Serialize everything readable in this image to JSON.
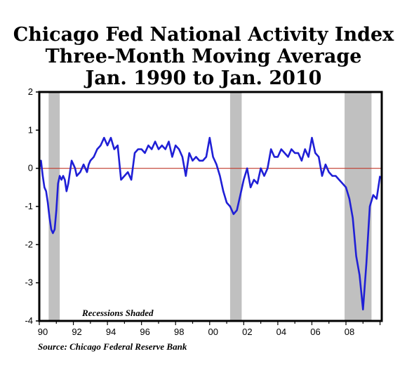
{
  "title_lines": [
    "Chicago Fed National Activity Index",
    "Three-Month Moving Average",
    "Jan. 1990 to Jan. 2010"
  ],
  "source": "Source: Chicago Federal Reserve Bank",
  "colors": {
    "series": "#1f1fd6",
    "zero_line": "#c0392b",
    "recession": "#c0c0c0",
    "frame": "#000000"
  },
  "chart_data": {
    "type": "line",
    "title": "Chicago Fed National Activity Index Three-Month Moving Average Jan. 1990 to Jan. 2010",
    "xlabel": "",
    "ylabel": "",
    "xlim": [
      1990.0,
      2010.1
    ],
    "ylim": [
      -4,
      2
    ],
    "y_ticks": [
      2,
      1,
      0,
      -1,
      -2,
      -3,
      -4
    ],
    "y_tick_labels": [
      "2",
      "1",
      "0",
      "-1",
      "-2",
      "-3",
      "-4"
    ],
    "x_tick_labels": [
      {
        "year": 1990,
        "label": "90"
      },
      {
        "year": 1992,
        "label": "92"
      },
      {
        "year": 1994,
        "label": "94"
      },
      {
        "year": 1996,
        "label": "96"
      },
      {
        "year": 1998,
        "label": "98"
      },
      {
        "year": 2000,
        "label": "00"
      },
      {
        "year": 2002,
        "label": "02"
      },
      {
        "year": 2004,
        "label": "04"
      },
      {
        "year": 2006,
        "label": "06"
      },
      {
        "year": 2008,
        "label": "08"
      }
    ],
    "reference_line": 0,
    "recessions": [
      [
        1990.55,
        1991.2
      ],
      [
        2001.2,
        2001.88
      ],
      [
        2007.92,
        2009.5
      ]
    ],
    "recessions_label": "Recessions Shaded",
    "grid": false,
    "series": [
      {
        "x": [
          1990.0,
          1990.1,
          1990.2,
          1990.3,
          1990.4,
          1990.5,
          1990.6,
          1990.7,
          1990.8,
          1990.9,
          1991.0,
          1991.1,
          1991.2,
          1991.3,
          1991.4,
          1991.5,
          1991.6,
          1991.7,
          1991.8,
          1991.9,
          1992.0,
          1992.1,
          1992.2,
          1992.3,
          1992.4,
          1992.5,
          1992.6,
          1992.7,
          1992.8,
          1992.9,
          1993.0,
          1993.2,
          1993.4,
          1993.6,
          1993.8,
          1994.0,
          1994.2,
          1994.4,
          1994.6,
          1994.8,
          1995.0,
          1995.2,
          1995.4,
          1995.6,
          1995.8,
          1996.0,
          1996.2,
          1996.4,
          1996.6,
          1996.8,
          1997.0,
          1997.2,
          1997.4,
          1997.6,
          1997.8,
          1998.0,
          1998.2,
          1998.4,
          1998.6,
          1998.8,
          1999.0,
          1999.2,
          1999.4,
          1999.6,
          1999.8,
          2000.0,
          2000.2,
          2000.4,
          2000.6,
          2000.8,
          2001.0,
          2001.2,
          2001.4,
          2001.6,
          2001.8,
          2002.0,
          2002.2,
          2002.4,
          2002.6,
          2002.8,
          2003.0,
          2003.2,
          2003.4,
          2003.6,
          2003.8,
          2004.0,
          2004.2,
          2004.4,
          2004.6,
          2004.8,
          2005.0,
          2005.2,
          2005.4,
          2005.6,
          2005.8,
          2006.0,
          2006.2,
          2006.4,
          2006.6,
          2006.8,
          2007.0,
          2007.2,
          2007.4,
          2007.6,
          2007.8,
          2008.0,
          2008.2,
          2008.4,
          2008.6,
          2008.8,
          2009.0,
          2009.2,
          2009.4,
          2009.6,
          2009.8,
          2010.0
        ],
        "y": [
          0.0,
          0.2,
          -0.2,
          -0.5,
          -0.6,
          -0.9,
          -1.3,
          -1.6,
          -1.7,
          -1.6,
          -1.1,
          -0.4,
          -0.2,
          -0.3,
          -0.2,
          -0.3,
          -0.6,
          -0.4,
          -0.1,
          0.2,
          0.1,
          0.0,
          -0.2,
          -0.15,
          -0.1,
          0.0,
          0.1,
          0.0,
          -0.1,
          0.1,
          0.2,
          0.3,
          0.5,
          0.6,
          0.8,
          0.6,
          0.8,
          0.5,
          0.6,
          -0.3,
          -0.2,
          -0.1,
          -0.3,
          0.4,
          0.5,
          0.5,
          0.4,
          0.6,
          0.5,
          0.7,
          0.5,
          0.6,
          0.5,
          0.7,
          0.3,
          0.6,
          0.5,
          0.3,
          -0.2,
          0.4,
          0.2,
          0.3,
          0.2,
          0.2,
          0.3,
          0.8,
          0.3,
          0.1,
          -0.2,
          -0.6,
          -0.9,
          -1.0,
          -1.2,
          -1.1,
          -0.7,
          -0.3,
          0.0,
          -0.5,
          -0.3,
          -0.4,
          0.0,
          -0.2,
          0.0,
          0.5,
          0.3,
          0.3,
          0.5,
          0.4,
          0.3,
          0.5,
          0.4,
          0.4,
          0.2,
          0.5,
          0.3,
          0.8,
          0.4,
          0.3,
          -0.2,
          0.1,
          -0.1,
          -0.2,
          -0.2,
          -0.3,
          -0.4,
          -0.5,
          -0.8,
          -1.3,
          -2.3,
          -2.8,
          -3.7,
          -2.5,
          -1.0,
          -0.7,
          -0.8,
          -0.2
        ]
      }
    ]
  }
}
